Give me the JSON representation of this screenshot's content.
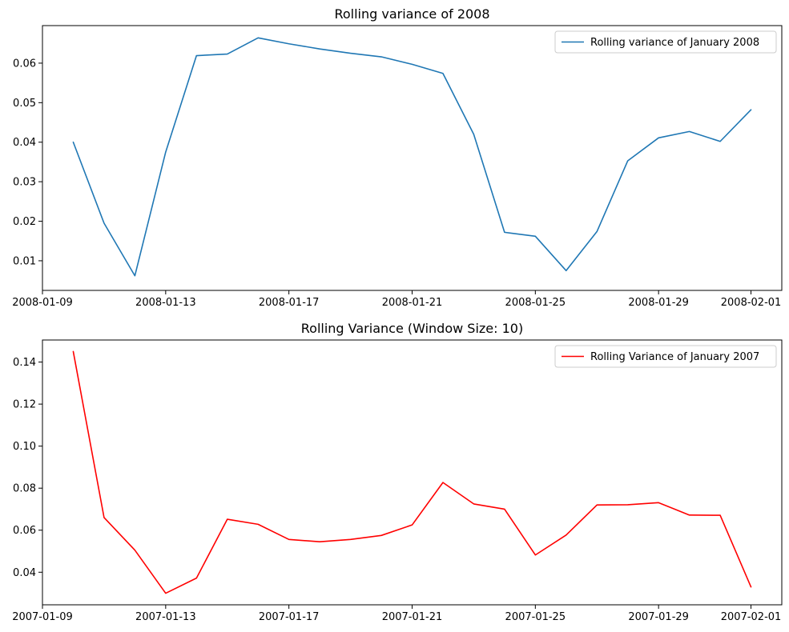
{
  "chart_data": [
    {
      "type": "line",
      "title": "Rolling variance of 2008",
      "xlabel": "",
      "ylabel": "",
      "x_type": "date",
      "xlim": [
        "2008-01-09",
        "2008-02-02"
      ],
      "x_ticks": [
        "2008-01-09",
        "2008-01-13",
        "2008-01-17",
        "2008-01-21",
        "2008-01-25",
        "2008-01-29",
        "2008-02-01"
      ],
      "ylim": [
        0.0025,
        0.0695
      ],
      "y_ticks": [
        0.01,
        0.02,
        0.03,
        0.04,
        0.05,
        0.06
      ],
      "y_tick_labels": [
        "0.01",
        "0.02",
        "0.03",
        "0.04",
        "0.05",
        "0.06"
      ],
      "legend_position": "top-right",
      "grid": false,
      "series": [
        {
          "name": "Rolling variance of January 2008",
          "color": "#1f77b4",
          "x": [
            "2008-01-10",
            "2008-01-11",
            "2008-01-12",
            "2008-01-13",
            "2008-01-14",
            "2008-01-15",
            "2008-01-16",
            "2008-01-17",
            "2008-01-18",
            "2008-01-19",
            "2008-01-20",
            "2008-01-21",
            "2008-01-22",
            "2008-01-23",
            "2008-01-24",
            "2008-01-25",
            "2008-01-26",
            "2008-01-27",
            "2008-01-28",
            "2008-01-29",
            "2008-01-30",
            "2008-01-31",
            "2008-02-01"
          ],
          "values": [
            0.04,
            0.0195,
            0.0062,
            0.0375,
            0.0619,
            0.0623,
            0.0664,
            0.0649,
            0.0636,
            0.0625,
            0.0616,
            0.0597,
            0.0574,
            0.042,
            0.0172,
            0.0162,
            0.0075,
            0.0174,
            0.0353,
            0.0411,
            0.0427,
            0.0402,
            0.0482
          ]
        }
      ]
    },
    {
      "type": "line",
      "title": "Rolling Variance (Window Size: 10)",
      "xlabel": "",
      "ylabel": "",
      "x_type": "date",
      "xlim": [
        "2007-01-09",
        "2007-02-02"
      ],
      "x_ticks": [
        "2007-01-09",
        "2007-01-13",
        "2007-01-17",
        "2007-01-21",
        "2007-01-25",
        "2007-01-29",
        "2007-02-01"
      ],
      "ylim": [
        0.0245,
        0.1505
      ],
      "y_ticks": [
        0.04,
        0.06,
        0.08,
        0.1,
        0.12,
        0.14
      ],
      "y_tick_labels": [
        "0.04",
        "0.06",
        "0.08",
        "0.10",
        "0.12",
        "0.14"
      ],
      "legend_position": "top-right",
      "grid": false,
      "series": [
        {
          "name": "Rolling Variance of January 2007",
          "color": "#ff0000",
          "x": [
            "2007-01-10",
            "2007-01-11",
            "2007-01-12",
            "2007-01-13",
            "2007-01-14",
            "2007-01-15",
            "2007-01-16",
            "2007-01-17",
            "2007-01-18",
            "2007-01-19",
            "2007-01-20",
            "2007-01-21",
            "2007-01-22",
            "2007-01-23",
            "2007-01-24",
            "2007-01-25",
            "2007-01-26",
            "2007-01-27",
            "2007-01-28",
            "2007-01-29",
            "2007-01-30",
            "2007-01-31",
            "2007-02-01"
          ],
          "values": [
            0.145,
            0.066,
            0.0505,
            0.03,
            0.0372,
            0.0652,
            0.0628,
            0.0556,
            0.0545,
            0.0556,
            0.0575,
            0.0625,
            0.0827,
            0.0725,
            0.07,
            0.0482,
            0.0577,
            0.072,
            0.0721,
            0.0731,
            0.0672,
            0.0671,
            0.033
          ]
        }
      ]
    }
  ]
}
